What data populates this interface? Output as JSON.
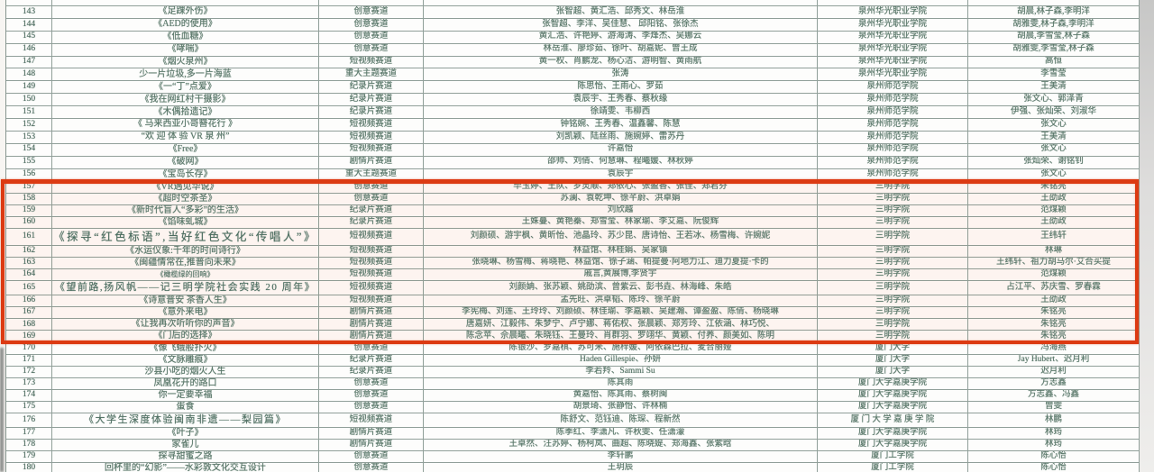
{
  "table": {
    "column_keys": [
      "no",
      "title",
      "track",
      "authors",
      "school",
      "advisors"
    ],
    "rows": [
      {
        "no": "",
        "title": "",
        "track": "",
        "authors": "",
        "school": "",
        "advisors": "",
        "em": "top"
      },
      {
        "no": "143",
        "title": "《足踝外伤》",
        "track": "创意赛道",
        "authors": "张智超、黄汇浩、邱秀文、林岳淮",
        "school": "泉州华光职业学院",
        "advisors": "胡晨,林子森,李明洋"
      },
      {
        "no": "144",
        "title": "《AED的使用》",
        "track": "创意赛道",
        "authors": "张智超、李洋、吴佳慧、 邱阳铭、张徐杰",
        "school": "泉州华光职业学院",
        "advisors": "胡雅雯,林子森,李明洋"
      },
      {
        "no": "145",
        "title": "《低血糖》",
        "track": "创意赛道",
        "authors": "黄汇浩、许艳婷、游海涛、李烽杰、吴娜云",
        "school": "泉州华光职业学院",
        "advisors": "胡晨,李雪莹,林子森"
      },
      {
        "no": "146",
        "title": "《哮喘》",
        "track": "创意赛道",
        "authors": "林岳淮、廖珍茹、徐叶、胡嘉妮、曾王成",
        "school": "泉州华光职业学院",
        "advisors": "胡雅雯,李雪莹,林子森"
      },
      {
        "no": "147",
        "title": "《烟火泉州》",
        "track": "短视频赛道",
        "authors": "黄一权、肖鹏龙、杨心洁、游明智、黄雨航",
        "school": "泉州华光职业学院",
        "advisors": "高恒"
      },
      {
        "no": "148",
        "title": "少一片垃圾,多一片海蓝",
        "track": "重大主题赛道",
        "authors": "张涛",
        "school": "泉州华光职业学院",
        "advisors": "李雪莹"
      },
      {
        "no": "149",
        "title": "《一“丁”点爱》",
        "track": "纪录片赛道",
        "authors": "陈思怡、王雨心、罗茹",
        "school": "泉州师范学院",
        "advisors": "王美清"
      },
      {
        "no": "150",
        "title": "《我在网红村干摄影》",
        "track": "纪录片赛道",
        "authors": "袁辰宇、王秀春、蔡秋缘",
        "school": "泉州师范学院",
        "advisors": "张文心、郭泽青"
      },
      {
        "no": "151",
        "title": "《木偶拾遗记》",
        "track": "纪录片赛道",
        "authors": "徐靖雯、韦柳西",
        "school": "泉州师范学院",
        "advisors": "伊强、张灿荣、刘淑华"
      },
      {
        "no": "152",
        "title": "《 马来西亚小哥簪花行 》",
        "track": "短视频赛道",
        "authors": "钟铭婉、王秀春、温鑫馨、陈慧",
        "school": "泉州师范学院",
        "advisors": "张文心"
      },
      {
        "no": "153",
        "title": "“欢 迎 体 验 VR 泉 州”",
        "track": "短视频赛道",
        "authors": "刘凯颖、陆丝雨、施婉婷、雷苏丹",
        "school": "泉州师范学院",
        "advisors": "王美清"
      },
      {
        "no": "154",
        "title": "《Free》",
        "track": "短视频赛道",
        "authors": "许嘉怡",
        "school": "泉州师范学院",
        "advisors": "张文心"
      },
      {
        "no": "155",
        "title": "《破网》",
        "track": "剧情片赛道",
        "authors": "邵帅、刘倩、何慧琳、程曦媛、林秋婷",
        "school": "泉州师范学院",
        "advisors": "张灿荣、谢铭钊"
      },
      {
        "no": "156",
        "title": "《宝岛长存》",
        "track": "重大主题赛道",
        "authors": "袁辰宇",
        "school": "泉州师范学院",
        "advisors": "张文心"
      },
      {
        "no": "157",
        "title": "《VR遇见华说》",
        "track": "创意赛道",
        "authors": "毕玉婷、王队、罗灵顺、郑依心、张盈香、张佳、郑君芬",
        "school": "三明学院",
        "advisors": "朱铭亮"
      },
      {
        "no": "158",
        "title": "《超时空茶圣》",
        "track": "创意赛道",
        "authors": "苏澜、袁乾坤、徐芊蔚、洪卓娟",
        "school": "三明学院",
        "advisors": "王劭政"
      },
      {
        "no": "159",
        "title": "《新时代盲人“多彩”的生活》",
        "track": "纪录片赛道",
        "authors": "刘欣越",
        "school": "三明学院",
        "advisors": "范煤颖"
      },
      {
        "no": "160",
        "title": "《馅味虬城》",
        "track": "纪录片赛道",
        "authors": "王姝蔓、黄艳蓁、郑雪莹、林家瑜、李艾嘉、阮俊辉",
        "school": "三明学院",
        "advisors": "王劭政"
      },
      {
        "no": "161",
        "title": "《探寻“红色标语”,当好红色文化“传唱人”》",
        "track": "短视频赛道",
        "authors": "刘颜硕、游宇枫、黄昕怡、池晶玲、苏少昆、唐诗怡、王若冰、杨雪梅、许婉妮",
        "school": "三明学院",
        "advisors": "王纬轩",
        "em": "lg"
      },
      {
        "no": "162",
        "title": "《水运仪象:千年的时间诗行》",
        "track": "短视频赛道",
        "authors": "林益馆、林桂娟、吴家镇",
        "school": "三明学院",
        "advisors": "林琳"
      },
      {
        "no": "163",
        "title": "《闽疆情常在,推普向未来》",
        "track": "短视频赛道",
        "authors": "张晓琳、杨雪梅、蒋晓艳、林益馆、徐子涵、帕提曼·阿地力江、迪力夏提·卡的",
        "school": "三明学院",
        "advisors": "王纬轩、祖力胡马尔·艾合买提"
      },
      {
        "no": "164",
        "title": "《橄榄绿的回响》",
        "track": "短视频赛道",
        "authors": "戚言,黄展博,李贤宇",
        "school": "三明学院",
        "advisors": "范煤颖",
        "em": "sm"
      },
      {
        "no": "165",
        "title": "《望前路,扬风帆——记三明学院社会实践 20 周年》",
        "track": "短视频赛道",
        "authors": "刘颜姌、张苏颖、姚劭滨、曾紫云、彭书垚、林海峰、朱皓",
        "school": "三明学院",
        "advisors": "占江平、苏庆雪、罗春霖",
        "em": "md"
      },
      {
        "no": "166",
        "title": "《诗意普安 茶香人生》",
        "track": "短视频赛道",
        "authors": "孟先旺、洪卓韬、陈玲、徐芊蔚",
        "school": "三明学院",
        "advisors": "王劭政"
      },
      {
        "no": "167",
        "title": "《意外来电》",
        "track": "剧情片赛道",
        "authors": "李宪梅、刘莲、王玲玲、刘颜硕、林佳瑜、李嘉颖、吴建瀚、谭盈盈、陈倩、杨晓琳",
        "school": "三明学院",
        "advisors": "朱铭亮"
      },
      {
        "no": "168",
        "title": "《让我再次听听你的声音》",
        "track": "剧情片赛道",
        "authors": "唐嘉妍、江毅伟、朱梦宁、卢宁娜、蒋佑权、张晨颖、郑芳玲、江依涵、林巧悦、",
        "school": "三明学院",
        "advisors": "朱铭亮"
      },
      {
        "no": "169",
        "title": "《门后的选择》",
        "track": "剧情片赛道",
        "authors": "陈念苹、佘晨曦、朱晓钰、王曼玲、肖群羽、罗翊华、黄颖、付养、颜美如、陈明",
        "school": "三明学院",
        "advisors": "朱铭亮"
      },
      {
        "no": "170",
        "title": "《像飞蛾般扑火》",
        "track": "创意赛道",
        "authors": "陈银沙、罗嘉棋、苏可米、施梓媛、阿依森巴拉、麦合丽娅",
        "school": "厦门大学",
        "advisors": "冯海燕"
      },
      {
        "no": "171",
        "title": "《文脉雕痕》",
        "track": "纪录片赛道",
        "authors": "Haden Gillespie、孙妍",
        "school": "厦门大学",
        "advisors": "Jay Hubert、迟月利"
      },
      {
        "no": "172",
        "title": "沙县小吃的烟火人生",
        "track": "纪录片赛道",
        "authors": "李若羚、Sammi Su",
        "school": "厦门大学",
        "advisors": "迟月利"
      },
      {
        "no": "173",
        "title": "凤凰花开的路口",
        "track": "创意赛道",
        "authors": "陈其雨",
        "school": "厦门大学嘉庚学院",
        "advisors": "方志鑫"
      },
      {
        "no": "174",
        "title": "你一定要幸福",
        "track": "创意赛道",
        "authors": "黄嘉怡、陈其雨、蔡树闽",
        "school": "厦门大学嘉庚学院",
        "advisors": "方志鑫、冯鑫"
      },
      {
        "no": "175",
        "title": "蛋食",
        "track": "创意赛道",
        "authors": "胡景琦、张静怡、许林楠",
        "school": "厦门大学嘉庚学院",
        "advisors": "曾雯"
      },
      {
        "no": "176",
        "title": "《大学生深度体验闽南非遗——梨园篇》",
        "track": "短视频赛道",
        "authors": "陈舒文、范钰迪、陈琛、程新然",
        "school": "厦 门 大 学 嘉 庚 学 院",
        "advisors": "林鹏",
        "em": "md"
      },
      {
        "no": "177",
        "title": "《叶子》",
        "track": "剧情片赛道",
        "authors": "陈季红、李潇凡、许秋雯、任潇濛",
        "school": "厦门大学嘉庚学院",
        "advisors": "林筠"
      },
      {
        "no": "178",
        "title": "家雀儿",
        "track": "剧情片赛道",
        "authors": "王卓然、汪苏婷、杨柯岚、曲超、陈晓媞、郑海鑫、张紫晗",
        "school": "厦门大学嘉庚学院",
        "advisors": "林筠"
      },
      {
        "no": "179",
        "title": "探寻甜蜜之路",
        "track": "创意赛道",
        "authors": "李轩鹏",
        "school": "厦门工学院",
        "advisors": "陈心怡"
      },
      {
        "no": "180",
        "title": "回杯里的“幻影”——水彩敦文化交互设计",
        "track": "创意赛道",
        "authors": "王玥辰",
        "school": "厦门工学院",
        "advisors": "陈心怡"
      }
    ]
  },
  "highlight": {
    "start_no": "157",
    "end_no": "169",
    "color": "#dc3a12"
  }
}
